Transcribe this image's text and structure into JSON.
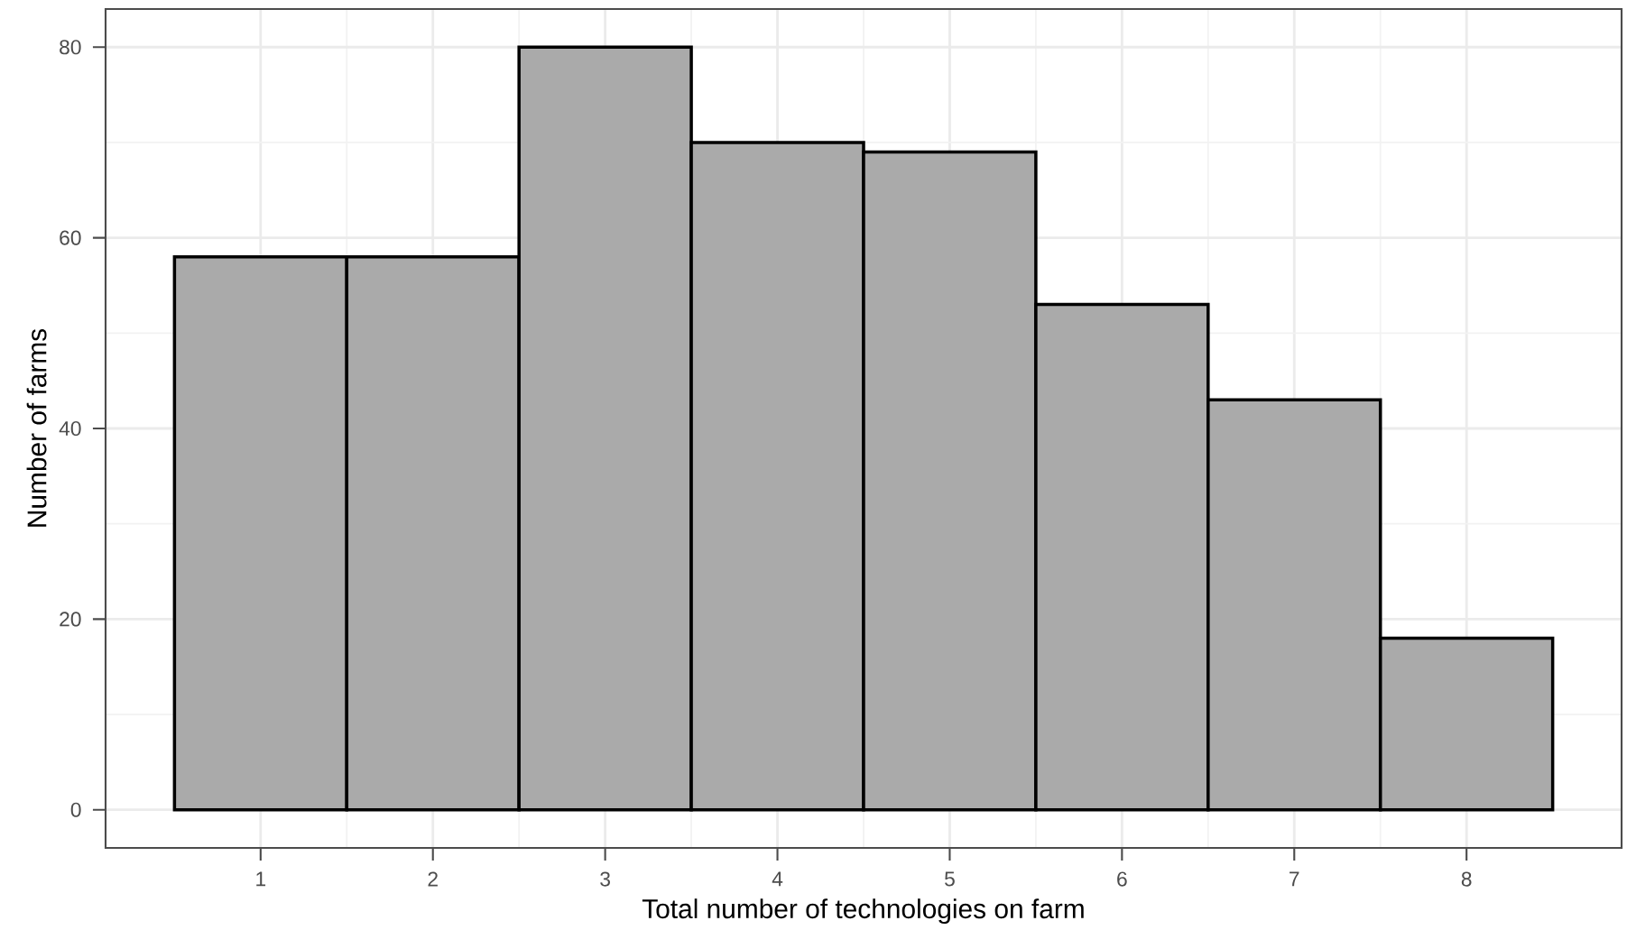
{
  "chart_data": {
    "type": "histogram",
    "xlabel": "Total number of technologies on farm",
    "ylabel": "Number of farms",
    "bins": [
      0.5,
      1.5,
      2.5,
      3.5,
      4.5,
      5.5,
      6.5,
      7.5,
      8.5
    ],
    "values": [
      58,
      58,
      80,
      70,
      69,
      53,
      43,
      18
    ],
    "color": "#aaaaaa",
    "xlim": [
      0.1,
      8.9
    ],
    "ylim": [
      -4,
      84
    ],
    "xticks": [
      1,
      2,
      3,
      4,
      5,
      6,
      7,
      8
    ],
    "yticks": [
      0,
      20,
      40,
      60,
      80
    ],
    "grid": true
  }
}
